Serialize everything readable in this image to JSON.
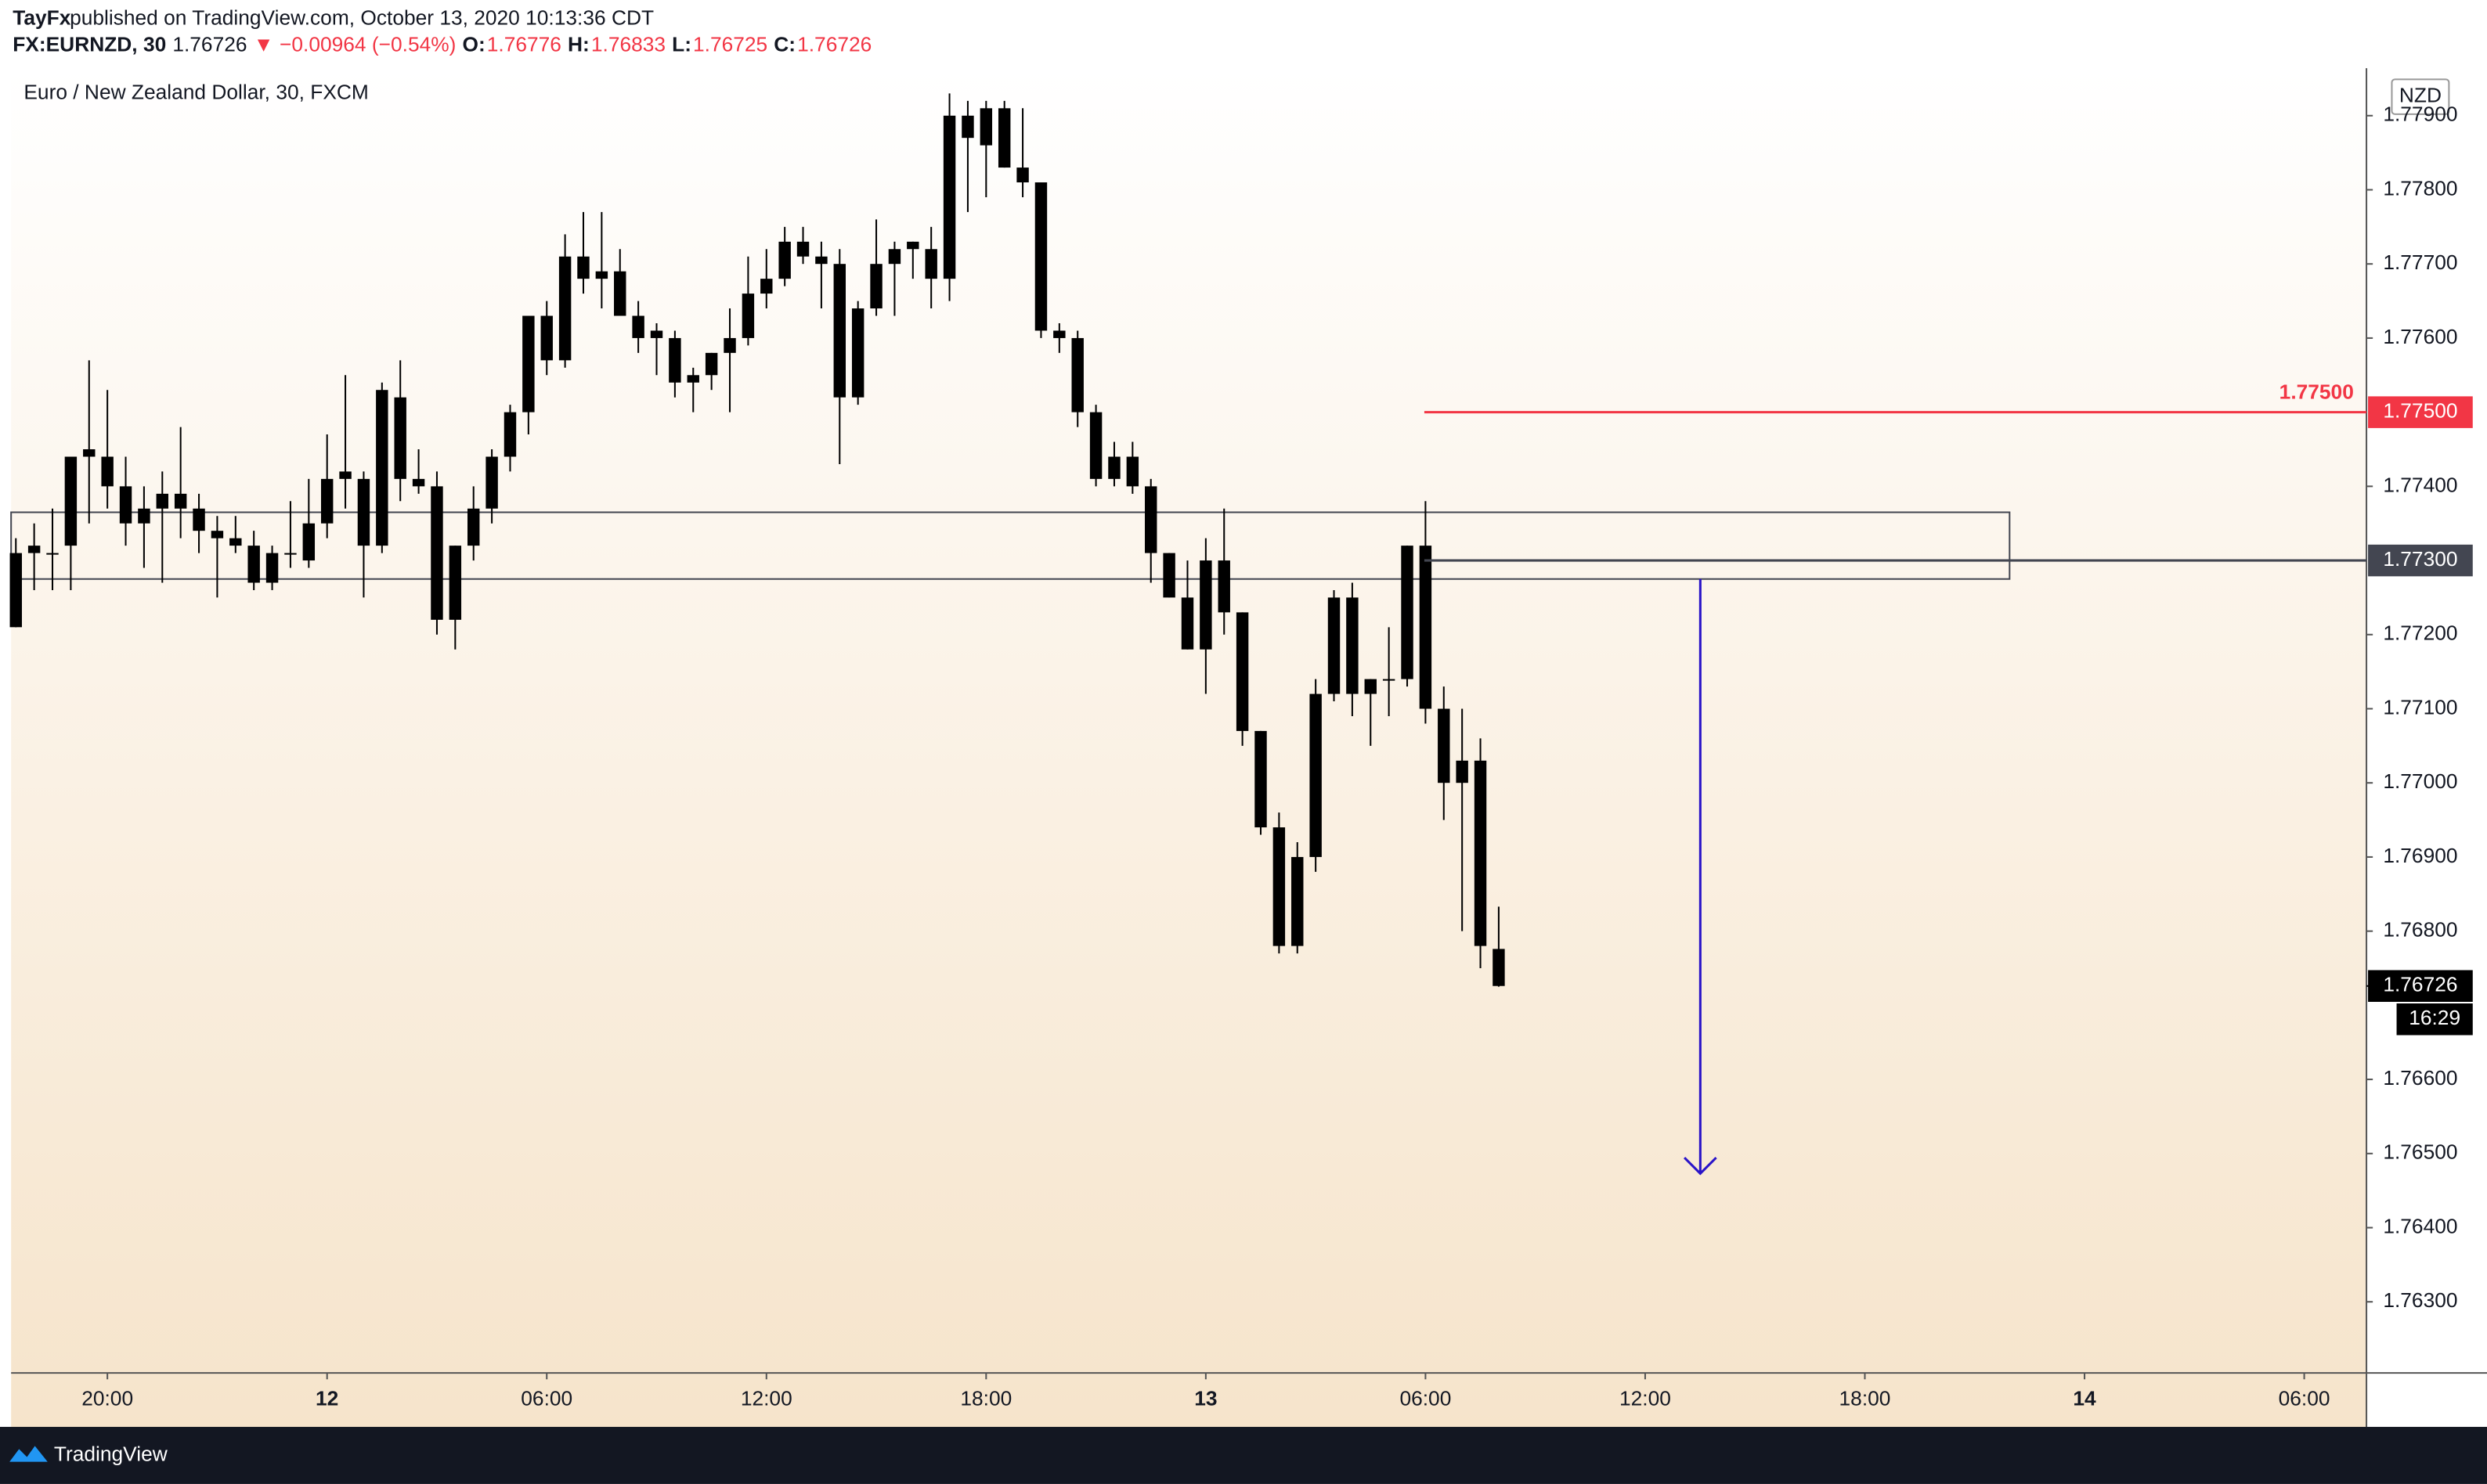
{
  "header": {
    "author": "TayFx",
    "published": "published on TradingView.com, October 13, 2020 10:13:36 CDT"
  },
  "legend": {
    "symbol": "FX:EURNZD, 30",
    "change": "▼ −0.00964 (−0.54%)",
    "o": "O:",
    "h": "H:",
    "l": "L:",
    "c": "C:"
  },
  "footer": {
    "brand": "TradingView"
  },
  "chart_data": {
    "type": "candlestick",
    "title": "Euro / New Zealand Dollar, 30, FXCM",
    "currency": "NZD",
    "countdown": "16:29",
    "color": "#000000",
    "categories": [
      null,
      null,
      null,
      null,
      null,
      null,
      null,
      null,
      null,
      null,
      null,
      null,
      null,
      null,
      null,
      null,
      null,
      null,
      null,
      null,
      null,
      null,
      null,
      null,
      null,
      null,
      null,
      null,
      null,
      null,
      null,
      null,
      null,
      null,
      null,
      null,
      null,
      null,
      null,
      null,
      null,
      null,
      null,
      null,
      null,
      null,
      null,
      null,
      null,
      null,
      null,
      null,
      null,
      null,
      null,
      null,
      null,
      null,
      null,
      null,
      null,
      null,
      null,
      null,
      null,
      null,
      null,
      null,
      null,
      null,
      null,
      null,
      null,
      null,
      null,
      null,
      null,
      null,
      null,
      null,
      null,
      null
    ],
    "open": [
      1.7731,
      1.7731,
      1.7731,
      1.7732,
      1.7745,
      1.7744,
      1.774,
      1.7735,
      1.7737,
      1.7739,
      1.7737,
      1.7734,
      1.7733,
      1.7732,
      1.7727,
      1.7731,
      1.773,
      1.7735,
      1.7741,
      1.7741,
      1.7732,
      1.7752,
      1.7741,
      1.774,
      1.7722,
      1.7732,
      1.7737,
      1.7744,
      1.775,
      1.7763,
      1.7757,
      1.7771,
      1.7768,
      1.7769,
      1.7763,
      1.7761,
      1.776,
      1.7754,
      1.7755,
      1.7758,
      1.776,
      1.7766,
      1.7768,
      1.7773,
      1.7771,
      1.777,
      1.7752,
      1.7764,
      1.777,
      1.7772,
      1.7772,
      1.7768,
      1.779,
      1.7786,
      1.7791,
      1.7783,
      1.7781,
      1.7761,
      1.776,
      1.775,
      1.7741,
      1.7744,
      1.774,
      1.7731,
      1.7725,
      1.7718,
      1.773,
      1.7723,
      1.7707,
      1.7694,
      1.7678,
      1.769,
      1.7712,
      1.7725,
      1.7712,
      1.7714,
      1.7714,
      1.7732,
      1.771,
      1.7703,
      1.7703,
      1.76776
    ],
    "high": [
      1.7733,
      1.7735,
      1.7737,
      1.7744,
      1.7757,
      1.7753,
      1.7744,
      1.774,
      1.7742,
      1.7748,
      1.7739,
      1.7736,
      1.7736,
      1.7734,
      1.7732,
      1.7738,
      1.7741,
      1.7747,
      1.7755,
      1.7742,
      1.7754,
      1.7757,
      1.7745,
      1.7742,
      1.7732,
      1.774,
      1.7745,
      1.7751,
      1.7763,
      1.7765,
      1.7774,
      1.7777,
      1.7777,
      1.7772,
      1.7765,
      1.7762,
      1.7761,
      1.7756,
      1.7758,
      1.7764,
      1.7771,
      1.7772,
      1.7775,
      1.7775,
      1.7773,
      1.7772,
      1.7765,
      1.7776,
      1.7773,
      1.7773,
      1.7775,
      1.7793,
      1.7792,
      1.7792,
      1.7792,
      1.7791,
      1.7781,
      1.7762,
      1.7761,
      1.7751,
      1.7746,
      1.7746,
      1.7741,
      1.7731,
      1.773,
      1.7733,
      1.7737,
      1.7723,
      1.7707,
      1.7696,
      1.7692,
      1.7714,
      1.7726,
      1.7727,
      1.7714,
      1.7721,
      1.7732,
      1.7738,
      1.7713,
      1.771,
      1.7706,
      1.76833
    ],
    "low": [
      1.7721,
      1.7726,
      1.7726,
      1.7726,
      1.7735,
      1.7737,
      1.7732,
      1.7729,
      1.7727,
      1.7733,
      1.7731,
      1.7725,
      1.7731,
      1.7726,
      1.7726,
      1.7729,
      1.7729,
      1.7733,
      1.7737,
      1.7725,
      1.7731,
      1.7738,
      1.7739,
      1.772,
      1.7718,
      1.773,
      1.7735,
      1.7742,
      1.7747,
      1.7755,
      1.7756,
      1.7766,
      1.7764,
      1.7763,
      1.7758,
      1.7755,
      1.7752,
      1.775,
      1.7753,
      1.775,
      1.7759,
      1.7764,
      1.7767,
      1.777,
      1.7764,
      1.7743,
      1.7751,
      1.7763,
      1.7763,
      1.7768,
      1.7764,
      1.7765,
      1.7777,
      1.7779,
      1.7783,
      1.7779,
      1.776,
      1.7758,
      1.7748,
      1.774,
      1.774,
      1.7739,
      1.7727,
      1.7725,
      1.7718,
      1.7712,
      1.772,
      1.7705,
      1.7693,
      1.7677,
      1.7677,
      1.7688,
      1.7711,
      1.7709,
      1.7705,
      1.7709,
      1.7713,
      1.7708,
      1.7695,
      1.768,
      1.7675,
      1.76725
    ],
    "close": [
      1.7721,
      1.7732,
      1.7731,
      1.7744,
      1.7744,
      1.774,
      1.7735,
      1.7737,
      1.7739,
      1.7737,
      1.7734,
      1.7733,
      1.7732,
      1.7727,
      1.7731,
      1.7731,
      1.7735,
      1.7741,
      1.7742,
      1.7732,
      1.7753,
      1.7741,
      1.774,
      1.7722,
      1.7732,
      1.7737,
      1.7744,
      1.775,
      1.7763,
      1.7757,
      1.7771,
      1.7768,
      1.7769,
      1.7763,
      1.776,
      1.776,
      1.7754,
      1.7755,
      1.7758,
      1.776,
      1.7766,
      1.7768,
      1.7773,
      1.7771,
      1.777,
      1.7752,
      1.7764,
      1.777,
      1.7772,
      1.7773,
      1.7768,
      1.779,
      1.7787,
      1.7791,
      1.7783,
      1.7781,
      1.7761,
      1.776,
      1.775,
      1.7741,
      1.7744,
      1.774,
      1.7731,
      1.7725,
      1.7718,
      1.773,
      1.7723,
      1.7707,
      1.7694,
      1.7678,
      1.769,
      1.7712,
      1.7725,
      1.7712,
      1.7714,
      1.7714,
      1.7732,
      1.771,
      1.77,
      1.77,
      1.7678,
      1.76726
    ],
    "xlim": [
      -0.26,
      128.4
    ],
    "xticks": [
      {
        "value": 5,
        "label": "20:00"
      },
      {
        "value": 17,
        "label": "12"
      },
      {
        "value": 29,
        "label": "06:00"
      },
      {
        "value": 41,
        "label": "12:00"
      },
      {
        "value": 53,
        "label": "18:00"
      },
      {
        "value": 65,
        "label": "13"
      },
      {
        "value": 77,
        "label": "06:00"
      },
      {
        "value": 89,
        "label": "12:00"
      },
      {
        "value": 101,
        "label": "18:00"
      },
      {
        "value": 113,
        "label": "14"
      },
      {
        "value": 125,
        "label": "06:00"
      }
    ],
    "ylim": [
      1.76204,
      1.77964
    ],
    "yticks": [
      {
        "value": 1.763,
        "label": "1.76300"
      },
      {
        "value": 1.764,
        "label": "1.76400"
      },
      {
        "value": 1.765,
        "label": "1.76500"
      },
      {
        "value": 1.766,
        "label": "1.76600"
      },
      {
        "value": 1.768,
        "label": "1.76800"
      },
      {
        "value": 1.769,
        "label": "1.76900"
      },
      {
        "value": 1.77,
        "label": "1.77000"
      },
      {
        "value": 1.771,
        "label": "1.77100"
      },
      {
        "value": 1.772,
        "label": "1.77200"
      },
      {
        "value": 1.774,
        "label": "1.77400"
      },
      {
        "value": 1.776,
        "label": "1.77600"
      },
      {
        "value": 1.777,
        "label": "1.77700"
      },
      {
        "value": 1.778,
        "label": "1.77800"
      },
      {
        "value": 1.779,
        "label": "1.77900"
      }
    ],
    "lines": [
      {
        "value": 1.775,
        "label": "1.77500",
        "color": "#f23645"
      },
      {
        "value": 1.773,
        "label": "1.77300",
        "color": "#434651"
      }
    ],
    "zone": {
      "top": 1.77365,
      "bottom": 1.77275
    },
    "arrow": {
      "from": 1.77275,
      "to": 1.76473,
      "color": "#2a14c8"
    }
  }
}
